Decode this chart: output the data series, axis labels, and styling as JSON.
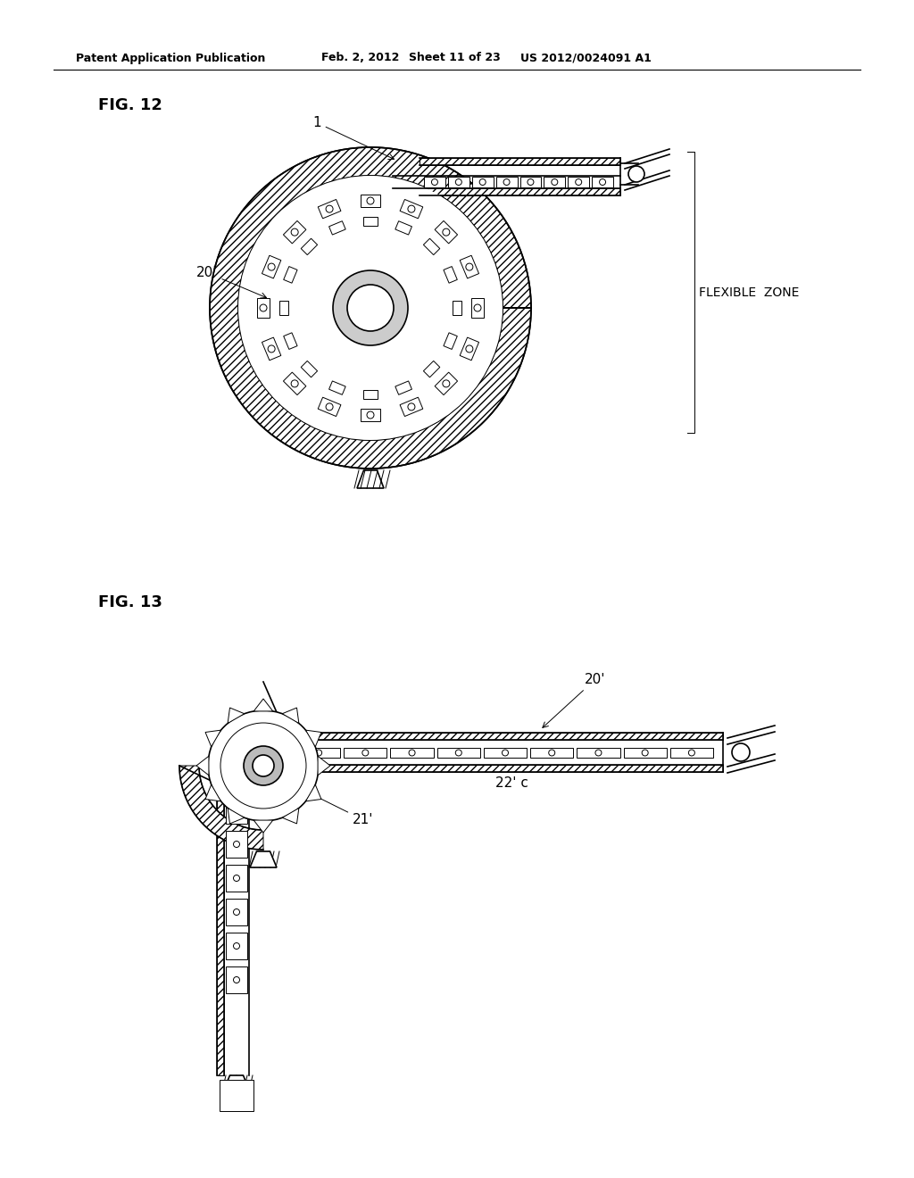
{
  "background_color": "#ffffff",
  "line_color": "#000000",
  "header_text": "Patent Application Publication",
  "header_date": "Feb. 2, 2012",
  "header_sheet": "Sheet 11 of 23",
  "header_patent": "US 2012/0024091 A1",
  "fig12_label": "FIG. 12",
  "fig13_label": "FIG. 13",
  "label_1": "1",
  "label_20p": "20'",
  "label_flexible": "FLEXIBLE  ZONE",
  "label_20p_13": "20'",
  "label_22pc": "22' c",
  "label_21p": "21'"
}
